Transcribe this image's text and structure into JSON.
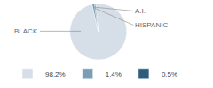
{
  "chart_data": {
    "type": "pie",
    "categories": [
      "BLACK",
      "A.I.",
      "HISPANIC"
    ],
    "values": [
      98.2,
      1.4,
      0.5
    ],
    "value_labels": [
      "98.2%",
      "1.4%",
      "0.5%"
    ],
    "colors": [
      "#d6dfe8",
      "#7b9eb5",
      "#2d5f7a"
    ],
    "legend": "bottom"
  }
}
